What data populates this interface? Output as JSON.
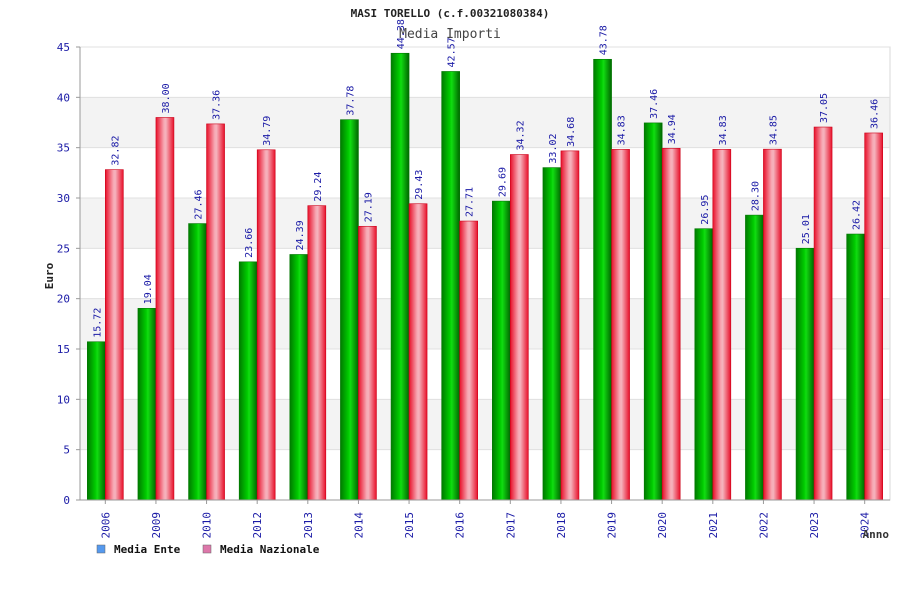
{
  "chart_data": {
    "type": "bar",
    "title": "MASI TORELLO (c.f.00321080384)",
    "subtitle": "Media Importi",
    "xlabel": "Anno",
    "ylabel": "Euro",
    "ylim": [
      0,
      45
    ],
    "yticks": [
      "0",
      "5",
      "10",
      "15",
      "20",
      "25",
      "30",
      "35",
      "40",
      "45"
    ],
    "grid": true,
    "legend_position": "bottom-left",
    "categories": [
      "2006",
      "2009",
      "2010",
      "2012",
      "2013",
      "2014",
      "2015",
      "2016",
      "2017",
      "2018",
      "2019",
      "2020",
      "2021",
      "2022",
      "2023",
      "2024"
    ],
    "series": [
      {
        "name": "Media Ente",
        "color": "#00aa00",
        "legend_color": "#5599ee",
        "values": [
          15.72,
          19.04,
          27.46,
          23.66,
          24.39,
          37.78,
          44.38,
          42.57,
          29.69,
          33.02,
          43.78,
          37.46,
          26.95,
          28.3,
          25.01,
          26.42
        ],
        "labels": [
          "15.72",
          "19.04",
          "27.46",
          "23.66",
          "24.39",
          "37.78",
          "44.38",
          "42.57",
          "29.69",
          "33.02",
          "43.78",
          "37.46",
          "26.95",
          "28.30",
          "25.01",
          "26.42"
        ]
      },
      {
        "name": "Media Nazionale",
        "color": "#ee2233",
        "legend_color": "#dd77aa",
        "values": [
          32.82,
          38.0,
          37.36,
          34.79,
          29.24,
          27.19,
          29.43,
          27.71,
          34.32,
          34.68,
          34.83,
          34.94,
          34.83,
          34.85,
          37.05,
          36.46
        ],
        "labels": [
          "32.82",
          "38.00",
          "37.36",
          "34.79",
          "29.24",
          "27.19",
          "29.43",
          "27.71",
          "34.32",
          "34.68",
          "34.83",
          "34.94",
          "34.83",
          "34.85",
          "37.05",
          "36.46"
        ]
      }
    ]
  }
}
